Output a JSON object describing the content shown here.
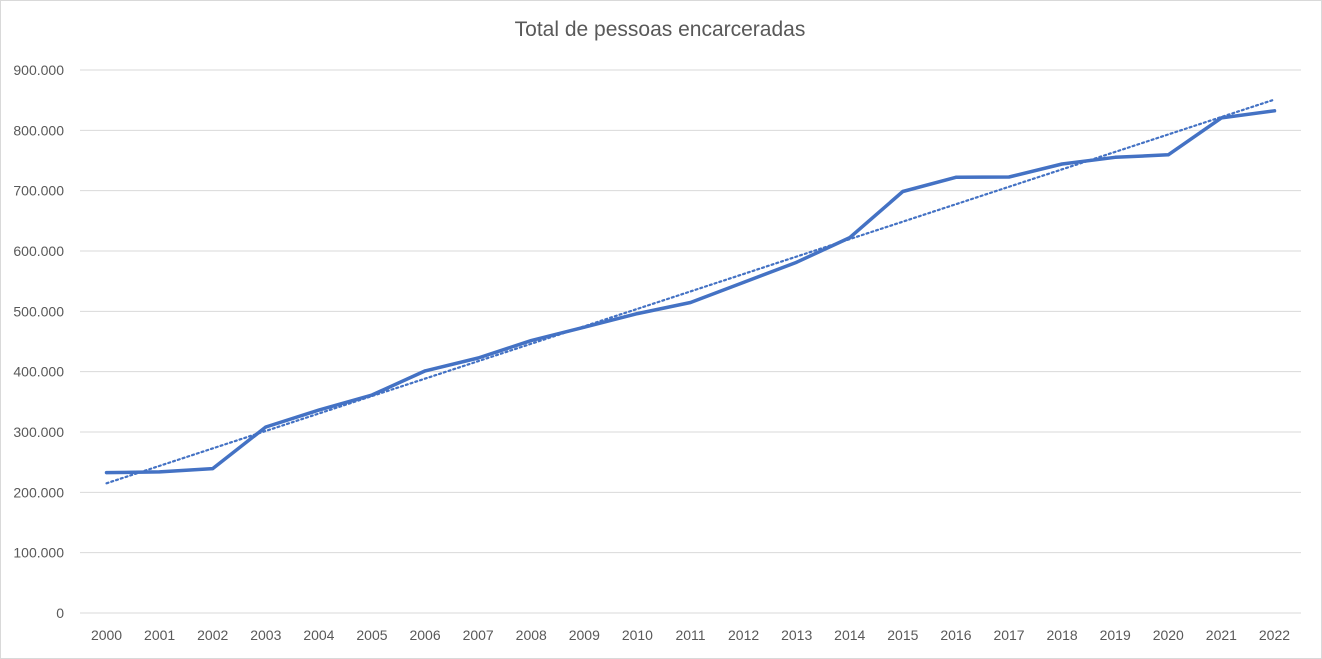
{
  "chart_data": {
    "type": "line",
    "title": "Total de pessoas encarceradas",
    "xlabel": "",
    "ylabel": "",
    "categories": [
      "2000",
      "2001",
      "2002",
      "2003",
      "2004",
      "2005",
      "2006",
      "2007",
      "2008",
      "2009",
      "2010",
      "2011",
      "2012",
      "2013",
      "2014",
      "2015",
      "2016",
      "2017",
      "2018",
      "2019",
      "2020",
      "2021",
      "2022"
    ],
    "y_ticks": [
      "0",
      "100.000",
      "200.000",
      "300.000",
      "400.000",
      "500.000",
      "600.000",
      "700.000",
      "800.000",
      "900.000"
    ],
    "ylim": [
      0,
      900000
    ],
    "grid": true,
    "legend": "none",
    "series": [
      {
        "values": [
          232755,
          233859,
          239345,
          308304,
          336358,
          361402,
          401236,
          422590,
          451429,
          473626,
          496251,
          514582,
          548003,
          581507,
          622202,
          698618,
          722120,
          722716,
          744216,
          755274,
          759518,
          820689,
          832295
        ],
        "color": "#4472c4",
        "style": "solid"
      }
    ],
    "trendline": {
      "kind": "linear",
      "start_value": 215000,
      "end_value": 851000,
      "color": "#4472c4",
      "style": "dotted"
    }
  }
}
